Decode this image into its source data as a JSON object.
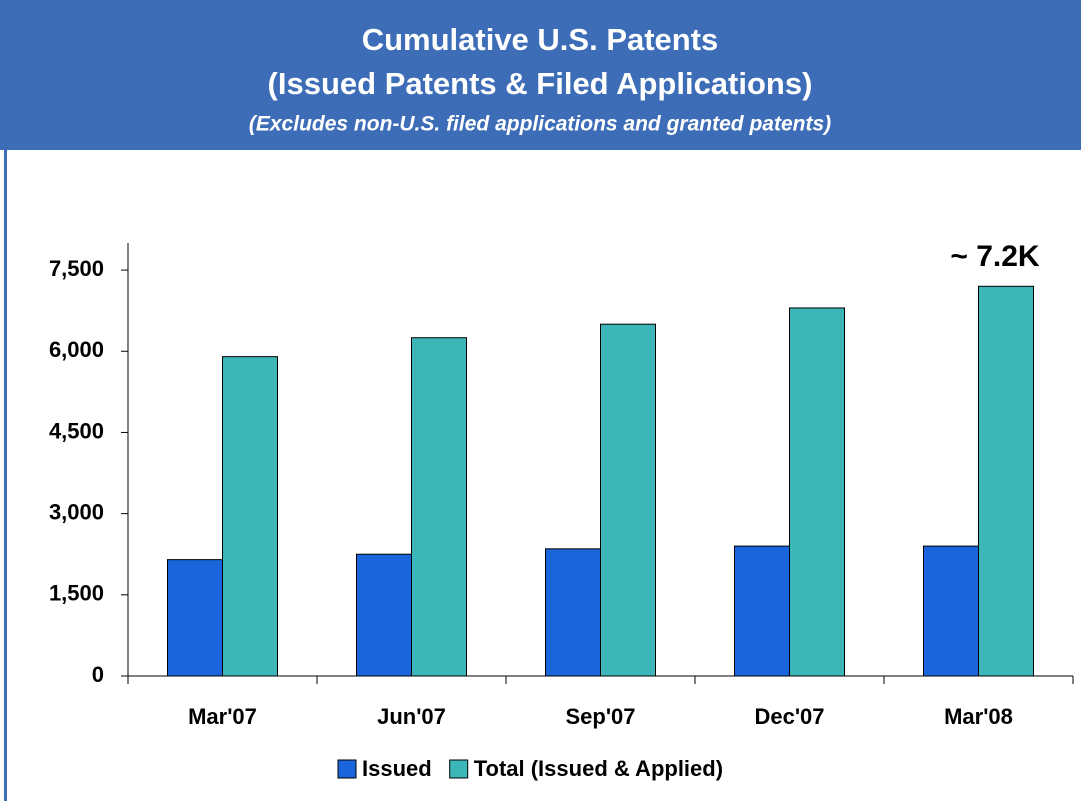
{
  "chart_data": {
    "type": "bar",
    "title": "Cumulative U.S. Patents",
    "title_line2": "(Issued Patents & Filed Applications)",
    "subtitle": "(Excludes non-U.S. filed applications and granted patents)",
    "annotation": "~ 7.2K",
    "categories": [
      "Mar'07",
      "Jun'07",
      "Sep'07",
      "Dec'07",
      "Mar'08"
    ],
    "series": [
      {
        "name": "Issued",
        "color": "#1a64dc",
        "values": [
          2150,
          2250,
          2350,
          2400,
          2400
        ]
      },
      {
        "name": "Total (Issued & Applied)",
        "color": "#3cb6b8",
        "values": [
          5900,
          6250,
          6500,
          6800,
          7200
        ]
      }
    ],
    "ylim": [
      0,
      8000
    ],
    "yticks": [
      0,
      {
        "value": 1500,
        "label": "1,500"
      },
      {
        "value": 3000,
        "label": "3,000"
      },
      {
        "value": 4500,
        "label": "4,500"
      },
      {
        "value": 6000,
        "label": "6,000"
      },
      {
        "value": 7500,
        "label": "7,500"
      }
    ],
    "grid": false,
    "legend": "bottom"
  }
}
